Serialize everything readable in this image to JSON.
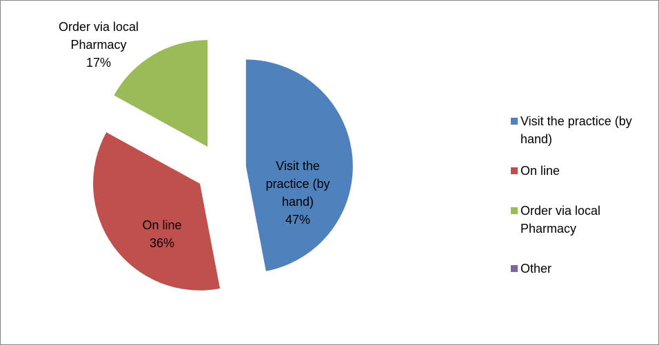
{
  "chart_data": {
    "type": "pie",
    "categories": [
      "Visit the practice (by hand)",
      "On line",
      "Order via local Pharmacy",
      "Other"
    ],
    "values": [
      47,
      36,
      17,
      0
    ],
    "value_labels": [
      "47%",
      "36%",
      "17%",
      null
    ],
    "colors": [
      "#4f81bd",
      "#c0504d",
      "#9bbb59",
      "#8064a2"
    ],
    "exploded": true,
    "legend": "right"
  }
}
